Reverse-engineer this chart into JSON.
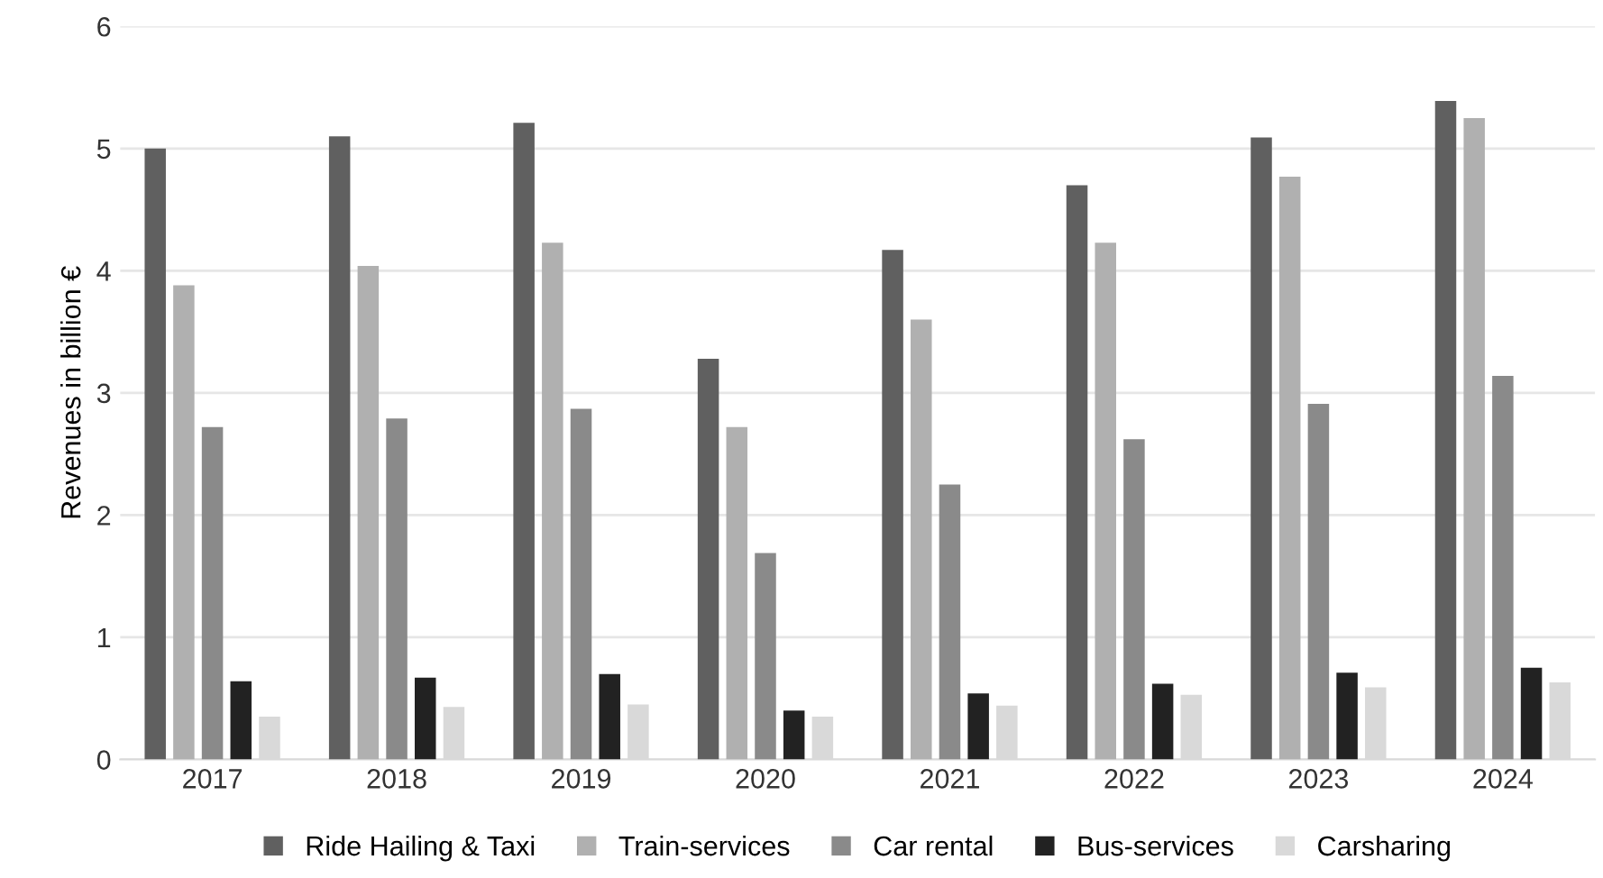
{
  "chart_data": {
    "type": "bar",
    "ylabel": "Revenues in billion €",
    "categories": [
      "2017",
      "2018",
      "2019",
      "2020",
      "2021",
      "2022",
      "2023",
      "2024"
    ],
    "series": [
      {
        "name": "Ride Hailing & Taxi",
        "color": "#606060",
        "values": [
          5.0,
          5.1,
          5.21,
          3.28,
          4.17,
          4.7,
          5.09,
          5.39
        ]
      },
      {
        "name": "Train-services",
        "color": "#b0b0b0",
        "values": [
          3.88,
          4.04,
          4.23,
          2.72,
          3.6,
          4.23,
          4.77,
          5.25
        ]
      },
      {
        "name": "Car rental",
        "color": "#8a8a8a",
        "values": [
          2.72,
          2.79,
          2.87,
          1.69,
          2.25,
          2.62,
          2.91,
          3.14
        ]
      },
      {
        "name": "Bus-services",
        "color": "#222222",
        "values": [
          0.64,
          0.67,
          0.7,
          0.4,
          0.54,
          0.62,
          0.71,
          0.75
        ]
      },
      {
        "name": "Carsharing",
        "color": "#d9d9d9",
        "values": [
          0.35,
          0.43,
          0.45,
          0.35,
          0.44,
          0.53,
          0.59,
          0.63
        ]
      }
    ],
    "ylim": [
      0,
      6
    ],
    "yticks": [
      0,
      1,
      2,
      3,
      4,
      5,
      6
    ],
    "grid": "y",
    "legend": "bottom"
  }
}
